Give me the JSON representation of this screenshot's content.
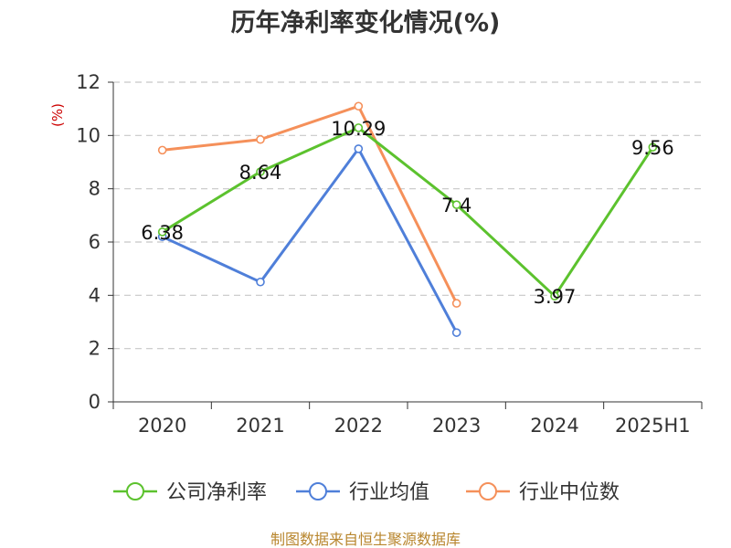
{
  "chart_data": {
    "type": "line",
    "title": "历年净利率变化情况(%)",
    "ylabel": "(%)",
    "xlabel": "",
    "categories": [
      "2020",
      "2021",
      "2022",
      "2023",
      "2024",
      "2025H1"
    ],
    "ylim": [
      0,
      12
    ],
    "yticks": [
      "0",
      "2",
      "4",
      "6",
      "8",
      "10",
      "12"
    ],
    "grid": true,
    "legend_position": "bottom",
    "series": [
      {
        "name": "公司净利率",
        "color": "#5cc22e",
        "values": [
          6.38,
          8.64,
          10.29,
          7.4,
          3.97,
          9.56
        ],
        "labels": [
          "6.38",
          "8.64",
          "10.29",
          "7.4",
          "3.97",
          "9.56"
        ]
      },
      {
        "name": "行业均值",
        "color": "#4f7fd9",
        "values": [
          6.2,
          4.5,
          9.5,
          2.6,
          null,
          null
        ]
      },
      {
        "name": "行业中位数",
        "color": "#f5905a",
        "values": [
          9.45,
          9.85,
          11.1,
          3.7,
          null,
          null
        ]
      }
    ]
  },
  "source": "制图数据来自恒生聚源数据库"
}
